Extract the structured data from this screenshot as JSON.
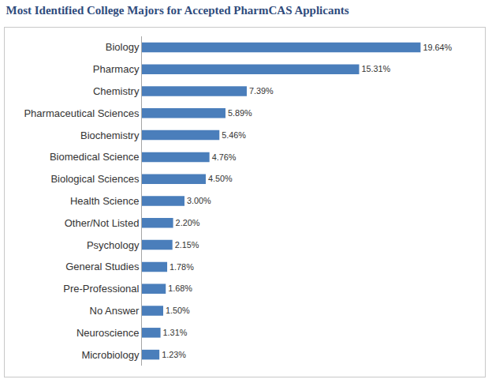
{
  "chart_data": {
    "type": "bar",
    "title": "Most Identified College Majors for Accepted PharmCAS Applicants",
    "orientation": "horizontal",
    "categories": [
      "Biology",
      "Pharmacy",
      "Chemistry",
      "Pharmaceutical Sciences",
      "Biochemistry",
      "Biomedical Science",
      "Biological Sciences",
      "Health Science",
      "Other/Not Listed",
      "Psychology",
      "General Studies",
      "Pre-Professional",
      "No Answer",
      "Neuroscience",
      "Microbiology"
    ],
    "values": [
      19.64,
      15.31,
      7.39,
      5.89,
      5.46,
      4.76,
      4.5,
      3.0,
      2.2,
      2.15,
      1.78,
      1.68,
      1.5,
      1.31,
      1.23
    ],
    "value_labels": [
      "19.64%",
      "15.31%",
      "7.39%",
      "5.89%",
      "5.46%",
      "4.76%",
      "4.50%",
      "3.00%",
      "2.20%",
      "2.15%",
      "1.78%",
      "1.68%",
      "1.50%",
      "1.31%",
      "1.23%"
    ],
    "color": "#4a7ebb",
    "data_labels": true,
    "tick_labels": "y",
    "grid": false
  }
}
